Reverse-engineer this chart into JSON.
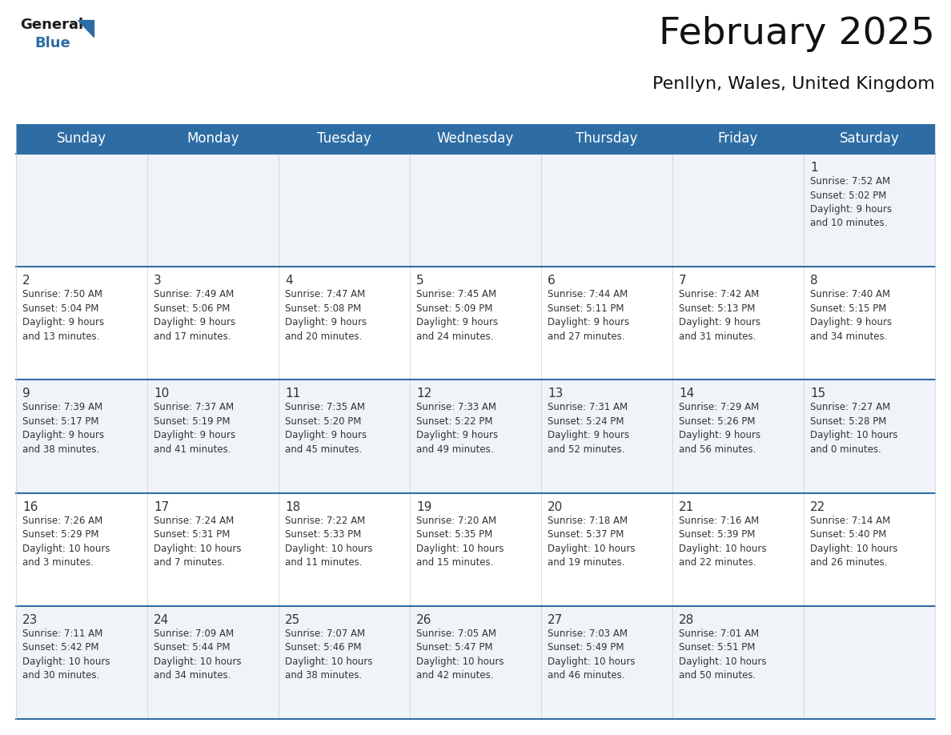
{
  "title": "February 2025",
  "subtitle": "Penllyn, Wales, United Kingdom",
  "header_bg": "#2E6DA4",
  "header_text_color": "#FFFFFF",
  "day_names": [
    "Sunday",
    "Monday",
    "Tuesday",
    "Wednesday",
    "Thursday",
    "Friday",
    "Saturday"
  ],
  "title_fontsize": 34,
  "subtitle_fontsize": 16,
  "header_fontsize": 12,
  "cell_fontsize": 8.5,
  "day_num_fontsize": 11,
  "bg_color": "#FFFFFF",
  "cell_bg_odd": "#F0F4F8",
  "cell_bg_even": "#FFFFFF",
  "border_color": "#2E6DA4",
  "text_color": "#333333",
  "logo_general_color": "#1a1a1a",
  "logo_blue_color": "#2E6DA4",
  "weeks": [
    {
      "days": [
        {
          "date": null,
          "info": null
        },
        {
          "date": null,
          "info": null
        },
        {
          "date": null,
          "info": null
        },
        {
          "date": null,
          "info": null
        },
        {
          "date": null,
          "info": null
        },
        {
          "date": null,
          "info": null
        },
        {
          "date": 1,
          "info": "Sunrise: 7:52 AM\nSunset: 5:02 PM\nDaylight: 9 hours\nand 10 minutes."
        }
      ]
    },
    {
      "days": [
        {
          "date": 2,
          "info": "Sunrise: 7:50 AM\nSunset: 5:04 PM\nDaylight: 9 hours\nand 13 minutes."
        },
        {
          "date": 3,
          "info": "Sunrise: 7:49 AM\nSunset: 5:06 PM\nDaylight: 9 hours\nand 17 minutes."
        },
        {
          "date": 4,
          "info": "Sunrise: 7:47 AM\nSunset: 5:08 PM\nDaylight: 9 hours\nand 20 minutes."
        },
        {
          "date": 5,
          "info": "Sunrise: 7:45 AM\nSunset: 5:09 PM\nDaylight: 9 hours\nand 24 minutes."
        },
        {
          "date": 6,
          "info": "Sunrise: 7:44 AM\nSunset: 5:11 PM\nDaylight: 9 hours\nand 27 minutes."
        },
        {
          "date": 7,
          "info": "Sunrise: 7:42 AM\nSunset: 5:13 PM\nDaylight: 9 hours\nand 31 minutes."
        },
        {
          "date": 8,
          "info": "Sunrise: 7:40 AM\nSunset: 5:15 PM\nDaylight: 9 hours\nand 34 minutes."
        }
      ]
    },
    {
      "days": [
        {
          "date": 9,
          "info": "Sunrise: 7:39 AM\nSunset: 5:17 PM\nDaylight: 9 hours\nand 38 minutes."
        },
        {
          "date": 10,
          "info": "Sunrise: 7:37 AM\nSunset: 5:19 PM\nDaylight: 9 hours\nand 41 minutes."
        },
        {
          "date": 11,
          "info": "Sunrise: 7:35 AM\nSunset: 5:20 PM\nDaylight: 9 hours\nand 45 minutes."
        },
        {
          "date": 12,
          "info": "Sunrise: 7:33 AM\nSunset: 5:22 PM\nDaylight: 9 hours\nand 49 minutes."
        },
        {
          "date": 13,
          "info": "Sunrise: 7:31 AM\nSunset: 5:24 PM\nDaylight: 9 hours\nand 52 minutes."
        },
        {
          "date": 14,
          "info": "Sunrise: 7:29 AM\nSunset: 5:26 PM\nDaylight: 9 hours\nand 56 minutes."
        },
        {
          "date": 15,
          "info": "Sunrise: 7:27 AM\nSunset: 5:28 PM\nDaylight: 10 hours\nand 0 minutes."
        }
      ]
    },
    {
      "days": [
        {
          "date": 16,
          "info": "Sunrise: 7:26 AM\nSunset: 5:29 PM\nDaylight: 10 hours\nand 3 minutes."
        },
        {
          "date": 17,
          "info": "Sunrise: 7:24 AM\nSunset: 5:31 PM\nDaylight: 10 hours\nand 7 minutes."
        },
        {
          "date": 18,
          "info": "Sunrise: 7:22 AM\nSunset: 5:33 PM\nDaylight: 10 hours\nand 11 minutes."
        },
        {
          "date": 19,
          "info": "Sunrise: 7:20 AM\nSunset: 5:35 PM\nDaylight: 10 hours\nand 15 minutes."
        },
        {
          "date": 20,
          "info": "Sunrise: 7:18 AM\nSunset: 5:37 PM\nDaylight: 10 hours\nand 19 minutes."
        },
        {
          "date": 21,
          "info": "Sunrise: 7:16 AM\nSunset: 5:39 PM\nDaylight: 10 hours\nand 22 minutes."
        },
        {
          "date": 22,
          "info": "Sunrise: 7:14 AM\nSunset: 5:40 PM\nDaylight: 10 hours\nand 26 minutes."
        }
      ]
    },
    {
      "days": [
        {
          "date": 23,
          "info": "Sunrise: 7:11 AM\nSunset: 5:42 PM\nDaylight: 10 hours\nand 30 minutes."
        },
        {
          "date": 24,
          "info": "Sunrise: 7:09 AM\nSunset: 5:44 PM\nDaylight: 10 hours\nand 34 minutes."
        },
        {
          "date": 25,
          "info": "Sunrise: 7:07 AM\nSunset: 5:46 PM\nDaylight: 10 hours\nand 38 minutes."
        },
        {
          "date": 26,
          "info": "Sunrise: 7:05 AM\nSunset: 5:47 PM\nDaylight: 10 hours\nand 42 minutes."
        },
        {
          "date": 27,
          "info": "Sunrise: 7:03 AM\nSunset: 5:49 PM\nDaylight: 10 hours\nand 46 minutes."
        },
        {
          "date": 28,
          "info": "Sunrise: 7:01 AM\nSunset: 5:51 PM\nDaylight: 10 hours\nand 50 minutes."
        },
        {
          "date": null,
          "info": null
        }
      ]
    }
  ]
}
